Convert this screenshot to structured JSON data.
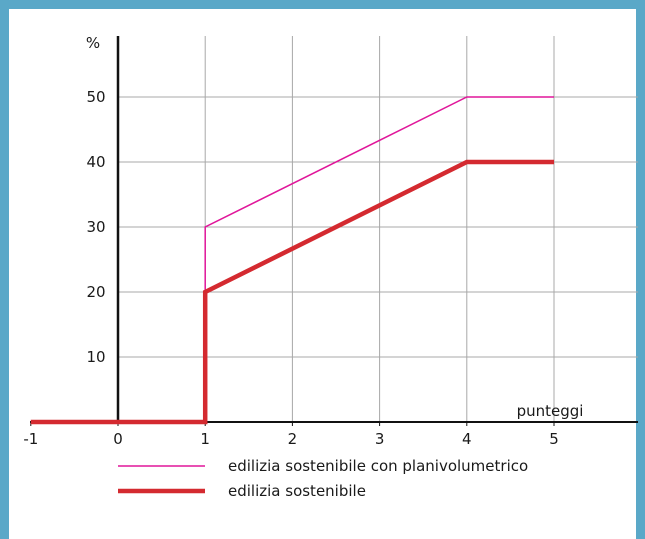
{
  "colors": {
    "frame": "#5aa8c8",
    "grid": "#a8a8a8",
    "axis": "#111111",
    "series_planivolumetrico": "#e0169a",
    "series_sostenibile": "#d42a30"
  },
  "chart_data": {
    "type": "line",
    "title": "",
    "ylabel": "%",
    "xlabel": "punteggi",
    "xlim": [
      -1,
      6
    ],
    "ylim": [
      0,
      60
    ],
    "x_ticks": [
      -1,
      0,
      1,
      2,
      3,
      4,
      5
    ],
    "x_tick_labels": [
      "-1",
      "0",
      "1",
      "2",
      "3",
      "4",
      "5"
    ],
    "y_ticks": [
      10,
      20,
      30,
      40,
      50
    ],
    "y_tick_labels": [
      "10",
      "20",
      "30",
      "40",
      "50"
    ],
    "grid": true,
    "legend_placement": "bottom",
    "series": [
      {
        "name": "edilizia sostenibile con planivolumetrico",
        "color": "#e0169a",
        "weight": "thin",
        "points": [
          [
            1,
            0
          ],
          [
            1,
            30
          ],
          [
            4,
            50
          ],
          [
            5,
            50
          ]
        ]
      },
      {
        "name": "edilizia sostenibile",
        "color": "#d42a30",
        "weight": "thick",
        "points": [
          [
            -1,
            0
          ],
          [
            1,
            0
          ],
          [
            1,
            20
          ],
          [
            4,
            40
          ],
          [
            5,
            40
          ]
        ]
      }
    ]
  }
}
